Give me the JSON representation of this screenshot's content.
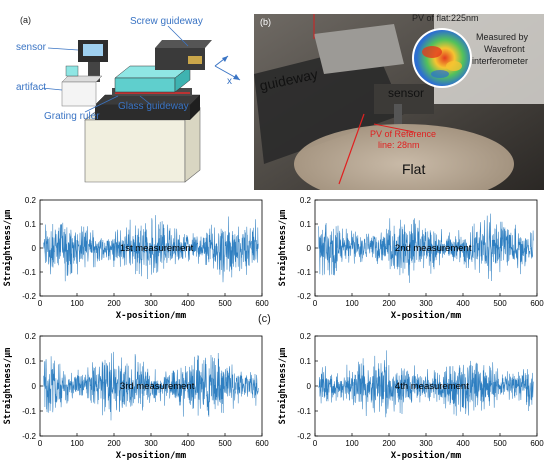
{
  "figure": {
    "panel_a": {
      "tag": "(a)",
      "labels": {
        "screw_guideway": "Screw guideway",
        "sensor": "sensor",
        "artifact": "artifact",
        "grating_ruler": "Grating ruler",
        "glass_guideway": "Glass guideway",
        "x_axis": "x"
      }
    },
    "panel_b": {
      "tag": "(b)",
      "labels": {
        "pv_flat": "PV of flat:225nm",
        "measured_by": [
          "Measured by",
          "Wavefront",
          "interferometer"
        ],
        "guideway": "guideway",
        "sensor": "sensor",
        "pv_reference": [
          "PV of Reference",
          "line: 28nm"
        ],
        "flat": "Flat"
      }
    },
    "panel_c": {
      "tag": "(c)"
    }
  },
  "chart_data": [
    {
      "type": "line",
      "annotation": "1st measurement",
      "xlabel": "X-position/mm",
      "ylabel": "Straightness/µm",
      "xlim": [
        0,
        600
      ],
      "ylim": [
        -0.2,
        0.2
      ],
      "xticks": [
        0,
        100,
        200,
        300,
        400,
        500,
        600
      ],
      "yticks": [
        -0.2,
        -0.1,
        0,
        0.1,
        0.2
      ],
      "series_color": "#2f7fc1",
      "x_range": [
        10,
        590
      ],
      "noise_amplitude": 0.15
    },
    {
      "type": "line",
      "annotation": "2nd measurement",
      "xlabel": "X-position/mm",
      "ylabel": "Straightness/µm",
      "xlim": [
        0,
        600
      ],
      "ylim": [
        -0.2,
        0.2
      ],
      "xticks": [
        0,
        100,
        200,
        300,
        400,
        500,
        600
      ],
      "yticks": [
        -0.2,
        -0.1,
        0,
        0.1,
        0.2
      ],
      "series_color": "#2f7fc1",
      "x_range": [
        10,
        590
      ],
      "noise_amplitude": 0.15
    },
    {
      "type": "line",
      "annotation": "3rd measurement",
      "xlabel": "X-position/mm",
      "ylabel": "Straightness/µm",
      "xlim": [
        0,
        600
      ],
      "ylim": [
        -0.2,
        0.2
      ],
      "xticks": [
        0,
        100,
        200,
        300,
        400,
        500,
        600
      ],
      "yticks": [
        -0.2,
        -0.1,
        0,
        0.1,
        0.2
      ],
      "series_color": "#2f7fc1",
      "x_range": [
        10,
        590
      ],
      "noise_amplitude": 0.16
    },
    {
      "type": "line",
      "annotation": "4th measurement",
      "xlabel": "X-position/mm",
      "ylabel": "Straightness/µm",
      "xlim": [
        0,
        600
      ],
      "ylim": [
        -0.2,
        0.2
      ],
      "xticks": [
        0,
        100,
        200,
        300,
        400,
        500,
        600
      ],
      "yticks": [
        -0.2,
        -0.1,
        0,
        0.1,
        0.2
      ],
      "series_color": "#2f7fc1",
      "x_range": [
        10,
        590
      ],
      "noise_amplitude": 0.15
    }
  ]
}
